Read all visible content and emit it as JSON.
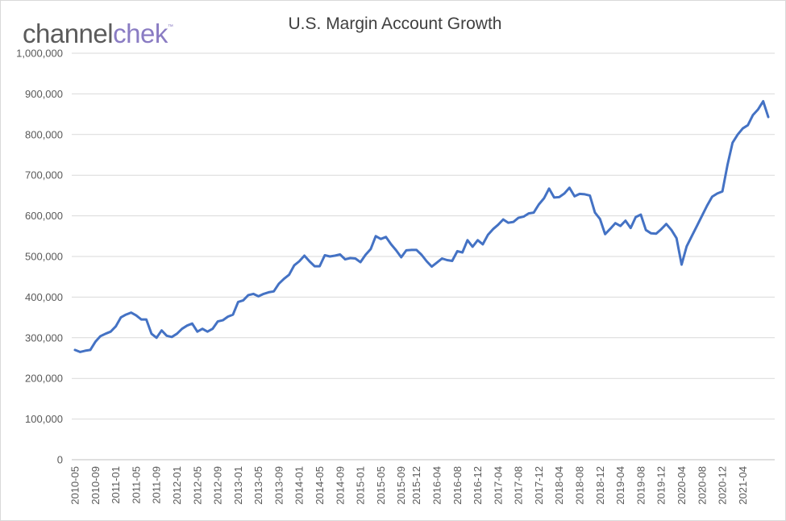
{
  "logo": {
    "part1": "channel",
    "part2": "chek",
    "mark": "™"
  },
  "chart_data": {
    "type": "line",
    "title": "U.S. Margin Account Growth",
    "xlabel": "",
    "ylabel": "",
    "ylim": [
      0,
      1000000
    ],
    "grid": true,
    "legend": "none",
    "color": "#4472c4",
    "y_ticks": [
      "0",
      "100,000",
      "200,000",
      "300,000",
      "400,000",
      "500,000",
      "600,000",
      "700,000",
      "800,000",
      "900,000",
      "1,000,000"
    ],
    "x_tick_labels": [
      "2010-05",
      "2010-09",
      "2011-01",
      "2011-05",
      "2011-09",
      "2012-01",
      "2012-05",
      "2012-09",
      "2013-01",
      "2013-05",
      "2013-09",
      "2014-01",
      "2014-05",
      "2014-09",
      "2015-01",
      "2015-05",
      "2015-09",
      "2015-12",
      "2016-04",
      "2016-08",
      "2016-12",
      "2017-04",
      "2017-08",
      "2017-12",
      "2018-04",
      "2018-08",
      "2018-12",
      "2019-04",
      "2019-08",
      "2019-12",
      "2020-04",
      "2020-08",
      "2020-12",
      "2021-04"
    ],
    "x_tick_index": [
      0,
      4,
      8,
      12,
      16,
      20,
      24,
      28,
      32,
      36,
      40,
      44,
      48,
      52,
      56,
      60,
      64,
      67,
      71,
      75,
      79,
      83,
      87,
      91,
      95,
      99,
      103,
      107,
      111,
      115,
      119,
      123,
      127,
      131
    ],
    "series": [
      {
        "values": [
          270000,
          265000,
          268000,
          270000,
          290000,
          304000,
          310000,
          315000,
          328000,
          350000,
          357000,
          362000,
          355000,
          345000,
          345000,
          310000,
          300000,
          318000,
          305000,
          302000,
          310000,
          322000,
          330000,
          335000,
          315000,
          322000,
          315000,
          322000,
          340000,
          343000,
          352000,
          357000,
          388000,
          392000,
          405000,
          408000,
          402000,
          408000,
          412000,
          414000,
          433000,
          445000,
          455000,
          478000,
          488000,
          502000,
          488000,
          476000,
          476000,
          503000,
          500000,
          502000,
          505000,
          493000,
          496000,
          495000,
          486000,
          504000,
          518000,
          550000,
          543000,
          548000,
          530000,
          515000,
          498000,
          515000,
          516000,
          516000,
          504000,
          488000,
          475000,
          485000,
          495000,
          491000,
          489000,
          513000,
          510000,
          540000,
          524000,
          540000,
          530000,
          553000,
          567000,
          578000,
          591000,
          583000,
          585000,
          595000,
          598000,
          606000,
          608000,
          628000,
          643000,
          667000,
          645000,
          646000,
          655000,
          669000,
          648000,
          654000,
          653000,
          650000,
          608000,
          592000,
          555000,
          568000,
          582000,
          575000,
          588000,
          570000,
          597000,
          603000,
          565000,
          557000,
          556000,
          567000,
          580000,
          565000,
          545000,
          480000,
          525000,
          550000,
          575000,
          600000,
          625000,
          647000,
          655000,
          660000,
          725000,
          780000,
          800000,
          815000,
          823000,
          848000,
          862000,
          882000,
          843000
        ]
      }
    ]
  }
}
